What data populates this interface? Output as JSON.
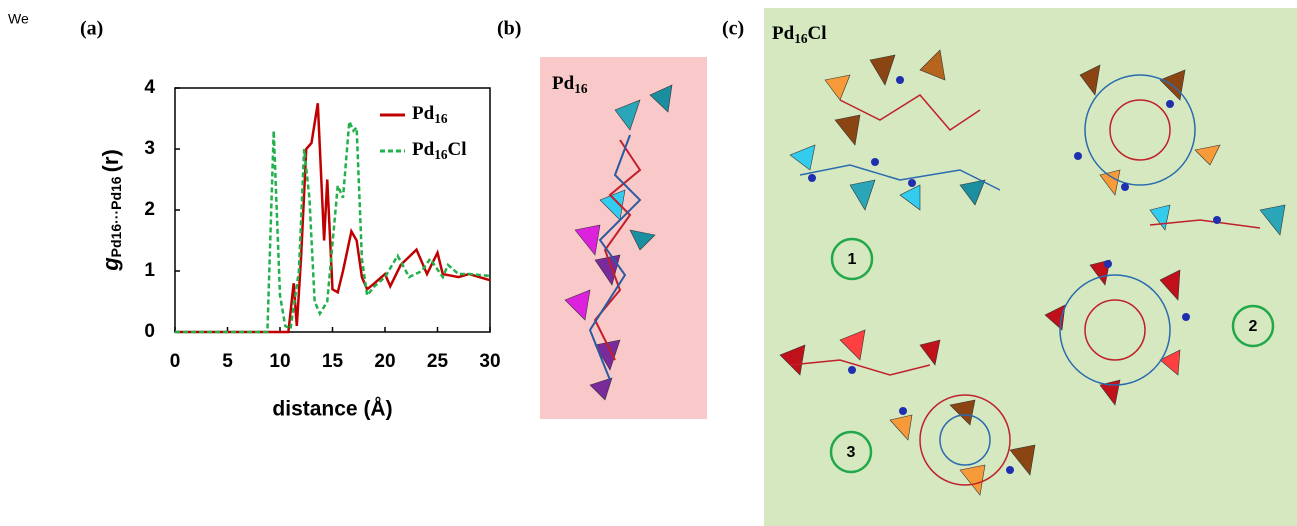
{
  "side_text": "We",
  "panels": [
    {
      "label": "(a)"
    },
    {
      "label": "(b)",
      "title": "Pd16"
    },
    {
      "label": "(c)",
      "title": "Pd16Cl",
      "markers": [
        "1",
        "2",
        "3"
      ]
    }
  ],
  "chart_data": {
    "type": "line",
    "x_label": "distance (Å)",
    "y_label": {
      "main": "g",
      "sub": "Pd16···Pd16",
      "suffix": "(r)"
    },
    "xlim": [
      0,
      30
    ],
    "xticks": [
      0,
      5,
      10,
      15,
      20,
      25,
      30
    ],
    "ylim": [
      0,
      4
    ],
    "yticks": [
      0,
      1,
      2,
      3,
      4
    ],
    "series": [
      {
        "name": "Pd16",
        "color": "#c00000",
        "dash": false,
        "x": [
          0,
          10.8,
          11.3,
          11.6,
          12.0,
          12.5,
          13.0,
          13.6,
          14.2,
          14.5,
          15.0,
          15.5,
          16.0,
          16.8,
          17.3,
          17.8,
          18.3,
          19.0,
          20.0,
          20.5,
          21.5,
          23.0,
          24.0,
          25.0,
          25.5,
          27.0,
          28.0,
          30.0
        ],
        "values": [
          0,
          0,
          0.8,
          0.1,
          1.2,
          3.0,
          3.1,
          3.75,
          1.5,
          2.5,
          0.7,
          0.65,
          1.0,
          1.65,
          1.5,
          0.9,
          0.7,
          0.8,
          0.95,
          0.75,
          1.1,
          1.35,
          0.95,
          1.3,
          0.95,
          0.9,
          0.95,
          0.85
        ]
      },
      {
        "name": "Pd16Cl",
        "color": "#22b04b",
        "dash": true,
        "x": [
          0,
          8.8,
          9.4,
          10.0,
          10.5,
          11.0,
          11.8,
          12.3,
          12.8,
          13.3,
          13.8,
          14.5,
          15.5,
          16.0,
          16.6,
          17.0,
          17.3,
          17.8,
          18.3,
          19.0,
          20.0,
          21.2,
          22.3,
          23.5,
          24.3,
          25.5,
          26.0,
          27.0,
          28.0,
          30.0
        ],
        "values": [
          0,
          0,
          3.3,
          0.6,
          0.1,
          0.05,
          1.0,
          3.0,
          2.2,
          0.5,
          0.3,
          0.5,
          2.4,
          2.2,
          3.45,
          3.3,
          3.35,
          1.2,
          0.6,
          0.75,
          0.9,
          1.25,
          0.9,
          1.0,
          1.2,
          0.9,
          1.1,
          0.95,
          0.95,
          0.92
        ]
      }
    ]
  }
}
